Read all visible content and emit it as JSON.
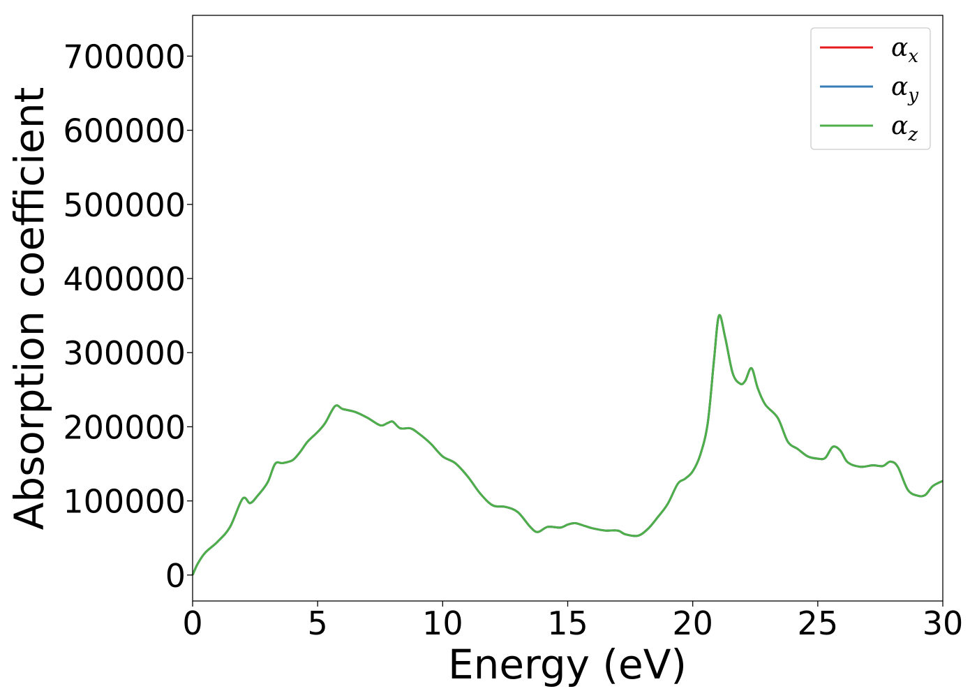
{
  "chart_data": {
    "type": "line",
    "title": "",
    "xlabel": "Energy (eV)",
    "ylabel": "Absorption coefficient",
    "xlim": [
      0,
      30
    ],
    "ylim": [
      -35000,
      755000
    ],
    "xticks": [
      0,
      5,
      10,
      15,
      20,
      25,
      30
    ],
    "yticks": [
      0,
      100000,
      200000,
      300000,
      400000,
      500000,
      600000,
      700000
    ],
    "grid": false,
    "legend_position": "top-right",
    "x": [
      0,
      0.2,
      0.5,
      1.0,
      1.5,
      2.0,
      2.3,
      2.6,
      3.0,
      3.3,
      3.6,
      4.0,
      4.3,
      4.6,
      5.0,
      5.3,
      5.7,
      6.0,
      6.5,
      7.0,
      7.5,
      7.8,
      8.0,
      8.3,
      8.7,
      9.0,
      9.5,
      10.0,
      10.5,
      11.0,
      11.5,
      12.0,
      12.5,
      13.0,
      13.5,
      13.8,
      14.2,
      14.7,
      15.0,
      15.3,
      15.7,
      16.0,
      16.5,
      17.0,
      17.3,
      17.8,
      18.2,
      18.6,
      19.0,
      19.4,
      19.7,
      20.0,
      20.3,
      20.6,
      20.85,
      21.05,
      21.3,
      21.6,
      21.9,
      22.1,
      22.35,
      22.6,
      22.9,
      23.4,
      23.8,
      24.2,
      24.6,
      25.0,
      25.3,
      25.6,
      25.9,
      26.2,
      26.7,
      27.2,
      27.6,
      27.9,
      28.2,
      28.6,
      29.0,
      29.3,
      29.6,
      30.0
    ],
    "series": [
      {
        "name": "α_x",
        "color": "#e41a1c",
        "values": [
          0,
          15000,
          30000,
          45000,
          65000,
          103000,
          97000,
          107000,
          125000,
          150000,
          151000,
          155000,
          166000,
          180000,
          193000,
          205000,
          228000,
          224000,
          220000,
          212000,
          202000,
          205000,
          207000,
          198000,
          198000,
          192000,
          178000,
          160000,
          151000,
          133000,
          110000,
          94000,
          92000,
          85000,
          65000,
          58000,
          65000,
          64000,
          68000,
          70000,
          66000,
          63000,
          60000,
          60000,
          55000,
          53000,
          62000,
          78000,
          96000,
          123000,
          130000,
          140000,
          162000,
          205000,
          290000,
          350000,
          320000,
          272000,
          258000,
          262000,
          279000,
          252000,
          230000,
          212000,
          180000,
          170000,
          160000,
          157000,
          158000,
          173000,
          168000,
          152000,
          146000,
          148000,
          147000,
          153000,
          146000,
          115000,
          107000,
          108000,
          120000,
          127000
        ]
      },
      {
        "name": "α_y",
        "color": "#377eb8",
        "values": [
          0,
          15000,
          30000,
          45000,
          65000,
          103000,
          97000,
          107000,
          125000,
          150000,
          151000,
          155000,
          166000,
          180000,
          193000,
          205000,
          228000,
          224000,
          220000,
          212000,
          202000,
          205000,
          207000,
          198000,
          198000,
          192000,
          178000,
          160000,
          151000,
          133000,
          110000,
          94000,
          92000,
          85000,
          65000,
          58000,
          65000,
          64000,
          68000,
          70000,
          66000,
          63000,
          60000,
          60000,
          55000,
          53000,
          62000,
          78000,
          96000,
          123000,
          130000,
          140000,
          162000,
          205000,
          290000,
          350000,
          320000,
          272000,
          258000,
          262000,
          279000,
          252000,
          230000,
          212000,
          180000,
          170000,
          160000,
          157000,
          158000,
          173000,
          168000,
          152000,
          146000,
          148000,
          147000,
          153000,
          146000,
          115000,
          107000,
          108000,
          120000,
          127000
        ]
      },
      {
        "name": "α_z",
        "color": "#4daf4a",
        "values": [
          0,
          15000,
          30000,
          45000,
          65000,
          103000,
          97000,
          107000,
          125000,
          150000,
          151000,
          155000,
          166000,
          180000,
          193000,
          205000,
          228000,
          224000,
          220000,
          212000,
          202000,
          205000,
          207000,
          198000,
          198000,
          192000,
          178000,
          160000,
          151000,
          133000,
          110000,
          94000,
          92000,
          85000,
          65000,
          58000,
          65000,
          64000,
          68000,
          70000,
          66000,
          63000,
          60000,
          60000,
          55000,
          53000,
          62000,
          78000,
          96000,
          123000,
          130000,
          140000,
          162000,
          205000,
          290000,
          350000,
          320000,
          272000,
          258000,
          262000,
          279000,
          252000,
          230000,
          212000,
          180000,
          170000,
          160000,
          157000,
          158000,
          173000,
          168000,
          152000,
          146000,
          148000,
          147000,
          153000,
          146000,
          115000,
          107000,
          108000,
          120000,
          127000
        ]
      }
    ],
    "legend": [
      {
        "symbol": "α",
        "subscript": "x"
      },
      {
        "symbol": "α",
        "subscript": "y"
      },
      {
        "symbol": "α",
        "subscript": "z"
      }
    ]
  }
}
